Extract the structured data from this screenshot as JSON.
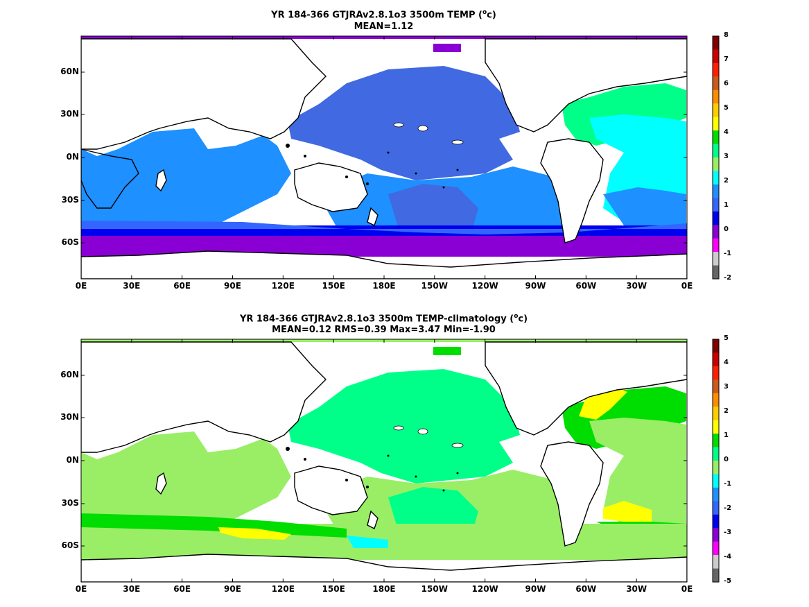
{
  "panels": [
    {
      "title_line1": "YR 184-366 GTJRAv2.8.1o3 3500m TEMP (",
      "title_unit_sup": "o",
      "title_unit_tail": "c)",
      "title_line2": "MEAN=1.12",
      "colorbar_ticks": [
        "8",
        "7",
        "6",
        "5",
        "4",
        "3",
        "2",
        "1",
        "0",
        "-1",
        "-2"
      ]
    },
    {
      "title_line1": "YR 184-366 GTJRAv2.8.1o3 3500m TEMP-climatology (",
      "title_unit_sup": "o",
      "title_unit_tail": "c)",
      "title_line2": "MEAN=0.12   RMS=0.39   Max=3.47   Min=-1.90",
      "colorbar_ticks": [
        "5",
        "4",
        "3",
        "2",
        "1",
        "0",
        "-1",
        "-2",
        "-3",
        "-4",
        "-5"
      ]
    }
  ],
  "lat_ticks": [
    "60N",
    "30N",
    "0N",
    "30S",
    "60S"
  ],
  "lon_ticks": [
    "0E",
    "30E",
    "60E",
    "90E",
    "120E",
    "150E",
    "180E",
    "150W",
    "120W",
    "90W",
    "60W",
    "30W",
    "0E"
  ],
  "colors": {
    "colorbar": [
      "#7f0000",
      "#cc0000",
      "#ff2200",
      "#cc5a1a",
      "#ff8c00",
      "#ffcc00",
      "#ffff00",
      "#00dd00",
      "#00ff88",
      "#99ee66",
      "#00ffff",
      "#1e90ff",
      "#3366ff",
      "#0000ee",
      "#8a00d4",
      "#ff00ff",
      "#cccccc",
      "#666666"
    ],
    "panel1_ocean": "#4169e1",
    "panel2_ocean": "#00ff88"
  }
}
